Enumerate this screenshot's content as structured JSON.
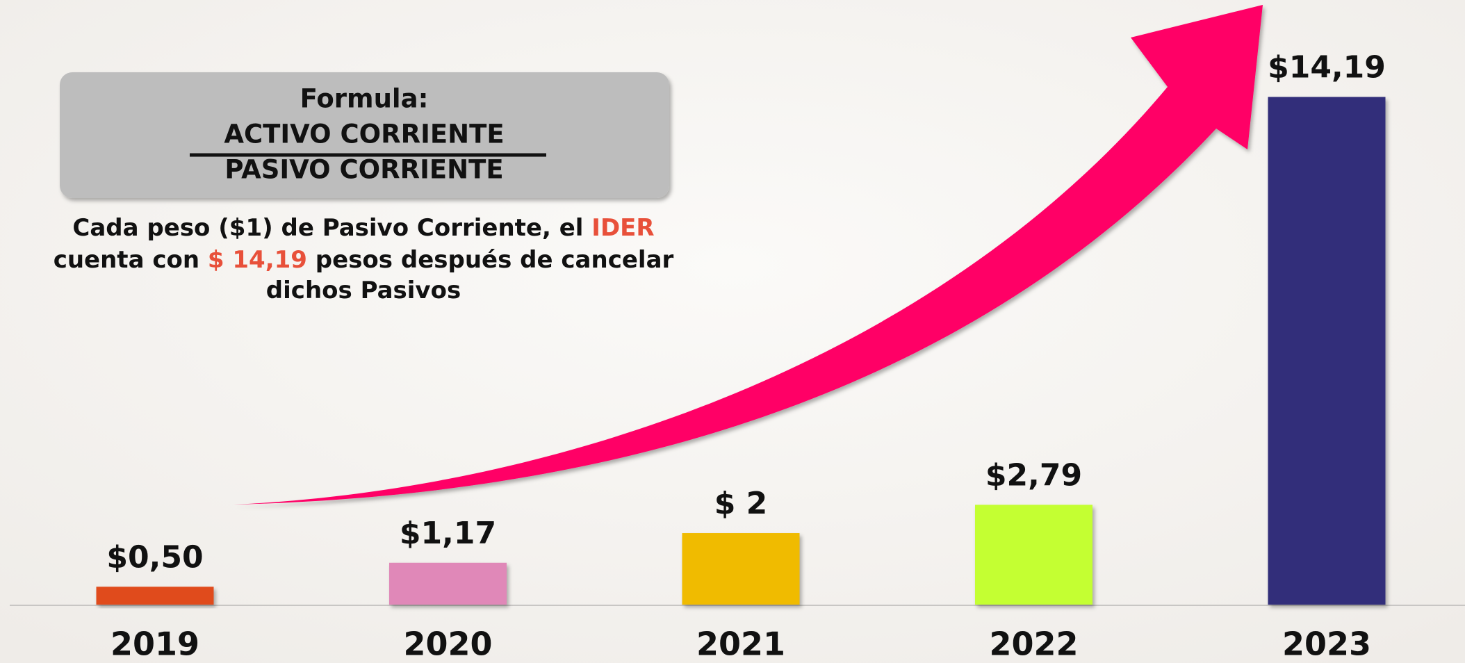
{
  "chart_data": {
    "type": "bar",
    "categories": [
      "2019",
      "2020",
      "2021",
      "2022",
      "2023"
    ],
    "values": [
      0.5,
      1.17,
      2,
      2.79,
      14.19
    ],
    "value_labels": [
      "$0,50",
      "$1,17",
      "$ 2",
      "$2,79",
      "$14,19"
    ],
    "colors": [
      "#e04b1a",
      "#e088b8",
      "#f0bb00",
      "#c4ff33",
      "#332e7a"
    ],
    "ylim": [
      0,
      16.9
    ],
    "formula": {
      "title": "Formula:",
      "numerator": "ACTIVO CORRIENTE",
      "denominator": "PASIVO CORRIENTE"
    },
    "description": [
      [
        {
          "text": "Cada peso ($1) de Pasivo Corriente, el ",
          "color": "#111111"
        },
        {
          "text": "IDER",
          "color": "#e8503a"
        }
      ],
      [
        {
          "text": "cuenta con ",
          "color": "#111111"
        },
        {
          "text": "$ 14,19",
          "color": "#e8503a"
        },
        {
          "text": " pesos después de cancelar",
          "color": "#111111"
        }
      ],
      [
        {
          "text": "dichos Pasivos",
          "color": "#111111"
        }
      ]
    ]
  }
}
